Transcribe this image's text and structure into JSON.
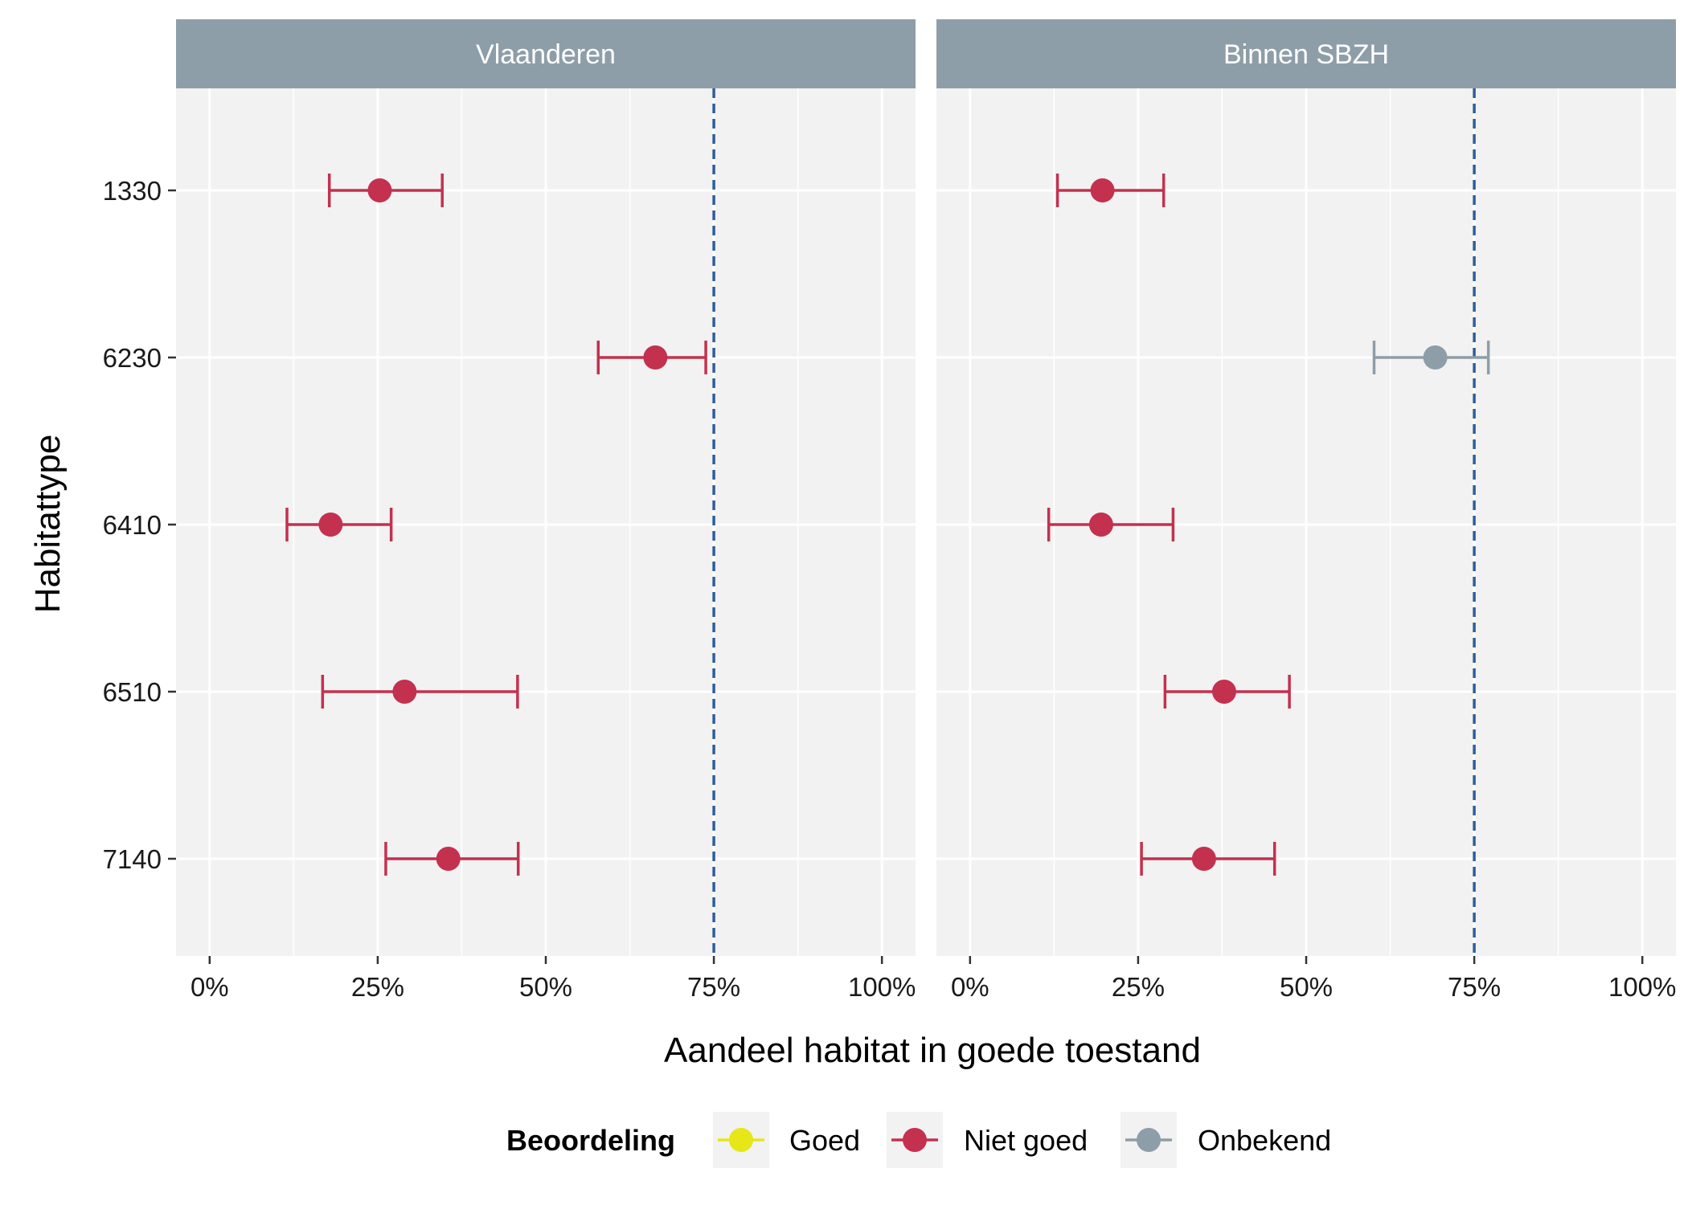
{
  "chart_data": {
    "type": "scatter",
    "xlabel": "Aandeel habitat in goede toestand",
    "ylabel": "Habitattype",
    "xlim": [
      -0.05,
      1.05
    ],
    "x_ticks": [
      0,
      0.25,
      0.5,
      0.75,
      1.0
    ],
    "x_tick_labels": [
      "0%",
      "25%",
      "50%",
      "75%",
      "100%"
    ],
    "categories": [
      "1330",
      "6230",
      "6410",
      "6510",
      "7140"
    ],
    "reference_line": {
      "x": 0.75,
      "style": "dashed",
      "color": "#2e5e9a"
    },
    "legend": {
      "title": "Beoordeling",
      "placement": "bottom",
      "entries": [
        {
          "label": "Goed",
          "color": "#e6e619"
        },
        {
          "label": "Niet goed",
          "color": "#c3314f"
        },
        {
          "label": "Onbekend",
          "color": "#8e9ea8"
        }
      ]
    },
    "panels": [
      {
        "title": "Vlaanderen",
        "points": [
          {
            "category": "1330",
            "estimate": 0.253,
            "lower": 0.178,
            "upper": 0.346,
            "status": "Niet goed"
          },
          {
            "category": "6230",
            "estimate": 0.663,
            "lower": 0.578,
            "upper": 0.738,
            "status": "Niet goed"
          },
          {
            "category": "6410",
            "estimate": 0.18,
            "lower": 0.115,
            "upper": 0.27,
            "status": "Niet goed"
          },
          {
            "category": "6510",
            "estimate": 0.29,
            "lower": 0.168,
            "upper": 0.458,
            "status": "Niet goed"
          },
          {
            "category": "7140",
            "estimate": 0.355,
            "lower": 0.262,
            "upper": 0.459,
            "status": "Niet goed"
          }
        ]
      },
      {
        "title": "Binnen SBZH",
        "points": [
          {
            "category": "1330",
            "estimate": 0.197,
            "lower": 0.13,
            "upper": 0.288,
            "status": "Niet goed"
          },
          {
            "category": "6230",
            "estimate": 0.692,
            "lower": 0.601,
            "upper": 0.771,
            "status": "Onbekend"
          },
          {
            "category": "6410",
            "estimate": 0.195,
            "lower": 0.117,
            "upper": 0.302,
            "status": "Niet goed"
          },
          {
            "category": "6510",
            "estimate": 0.378,
            "lower": 0.29,
            "upper": 0.475,
            "status": "Niet goed"
          },
          {
            "category": "7140",
            "estimate": 0.348,
            "lower": 0.255,
            "upper": 0.453,
            "status": "Niet goed"
          }
        ]
      }
    ]
  }
}
